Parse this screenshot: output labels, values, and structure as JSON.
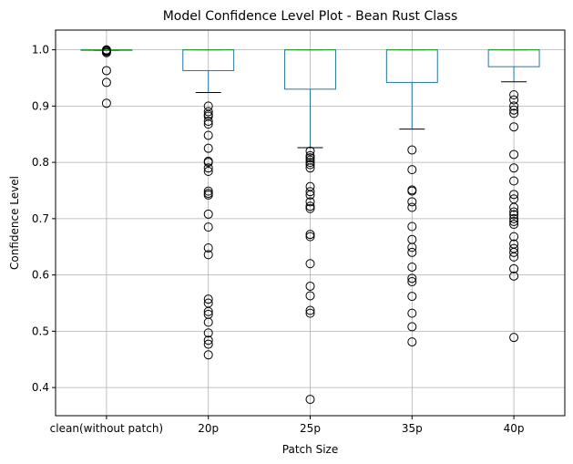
{
  "chart_data": {
    "type": "box",
    "title": "Model Confidence Level Plot - Bean Rust Class",
    "xlabel": "Patch Size",
    "ylabel": "Confidence Level",
    "ylim": [
      0.35,
      1.035
    ],
    "yticks": [
      0.4,
      0.5,
      0.6,
      0.7,
      0.8,
      0.9,
      1.0
    ],
    "ytick_labels": [
      "0.4",
      "0.5",
      "0.6",
      "0.7",
      "0.8",
      "0.9",
      "1.0"
    ],
    "grid": true,
    "colors": {
      "box": "#1f77b4",
      "median": "#2ca02c",
      "whisker_cap": "#000000",
      "grid": "#b0b0b0",
      "outlier": "#000000"
    },
    "categories": [
      "clean(without patch)",
      "20p",
      "25p",
      "35p",
      "40p"
    ],
    "boxes": [
      {
        "category": "clean(without patch)",
        "whisker_low": 0.999,
        "q1": 0.999,
        "median": 1.0,
        "q3": 1.0,
        "whisker_high": 1.0,
        "outliers": [
          1.0,
          0.999,
          0.998,
          0.997,
          0.995,
          0.963,
          0.942,
          0.905
        ]
      },
      {
        "category": "20p",
        "whisker_low": 0.924,
        "q1": 0.963,
        "median": 1.0,
        "q3": 1.0,
        "whisker_high": 1.0,
        "outliers": [
          0.9,
          0.89,
          0.885,
          0.882,
          0.873,
          0.868,
          0.848,
          0.825,
          0.802,
          0.8,
          0.79,
          0.784,
          0.749,
          0.745,
          0.742,
          0.708,
          0.685,
          0.648,
          0.636,
          0.557,
          0.55,
          0.535,
          0.53,
          0.516,
          0.497,
          0.484,
          0.477,
          0.458
        ]
      },
      {
        "category": "25p",
        "whisker_low": 0.826,
        "q1": 0.93,
        "median": 1.0,
        "q3": 1.0,
        "whisker_high": 1.0,
        "outliers": [
          0.82,
          0.812,
          0.808,
          0.804,
          0.8,
          0.796,
          0.79,
          0.757,
          0.748,
          0.742,
          0.73,
          0.722,
          0.718,
          0.672,
          0.668,
          0.62,
          0.58,
          0.563,
          0.537,
          0.532,
          0.379
        ]
      },
      {
        "category": "35p",
        "whisker_low": 0.859,
        "q1": 0.942,
        "median": 1.0,
        "q3": 1.0,
        "whisker_high": 1.0,
        "outliers": [
          0.822,
          0.787,
          0.751,
          0.749,
          0.73,
          0.72,
          0.686,
          0.663,
          0.649,
          0.64,
          0.614,
          0.594,
          0.588,
          0.562,
          0.532,
          0.508,
          0.481
        ]
      },
      {
        "category": "40p",
        "whisker_low": 0.943,
        "q1": 0.97,
        "median": 1.0,
        "q3": 1.0,
        "whisker_high": 1.0,
        "outliers": [
          0.92,
          0.911,
          0.9,
          0.893,
          0.887,
          0.863,
          0.814,
          0.79,
          0.767,
          0.743,
          0.735,
          0.72,
          0.712,
          0.707,
          0.7,
          0.695,
          0.69,
          0.668,
          0.655,
          0.647,
          0.64,
          0.632,
          0.611,
          0.598,
          0.489
        ]
      }
    ]
  }
}
